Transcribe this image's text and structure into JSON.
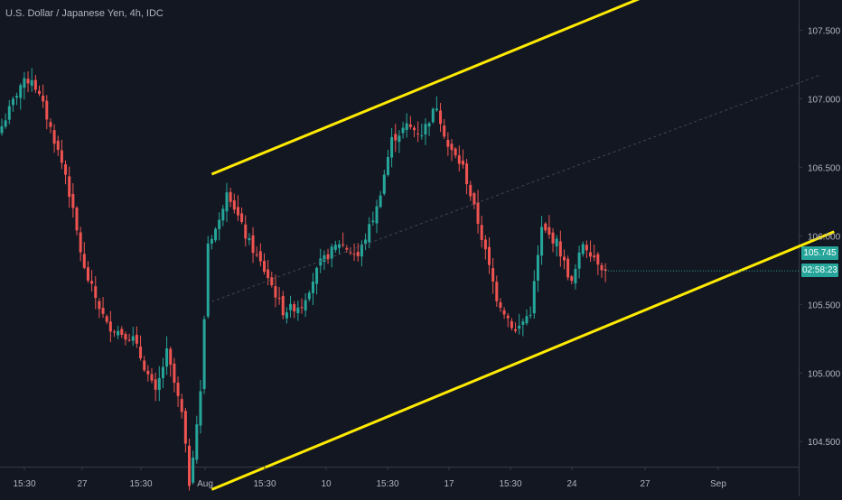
{
  "header": {
    "title": "U.S. Dollar / Japanese Yen, 4h, IDC"
  },
  "indicators": {
    "last_price": "105.745",
    "countdown": "02:58:23"
  },
  "colors": {
    "background": "#131722",
    "up": "#26a69a",
    "down": "#ef5350",
    "channel": "#ffeb00",
    "midline": "#434651",
    "axis_text": "#b2b5be"
  },
  "chart_data": {
    "type": "candlestick",
    "title": "U.S. Dollar / Japanese Yen, 4h, IDC",
    "xlabel": "",
    "ylabel": "",
    "ylim": [
      104.1,
      107.72
    ],
    "y_ticks": [
      "107.500",
      "107.000",
      "106.500",
      "106.000",
      "105.500",
      "105.000",
      "104.500"
    ],
    "x_ticks": [
      "15:30",
      "27",
      "15:30",
      "Aug",
      "15:30",
      "10",
      "15:30",
      "17",
      "15:30",
      "24",
      "27",
      "Sep"
    ],
    "grid": false,
    "last_price": 105.745,
    "anchors": [
      {
        "i": 0,
        "c": 106.8
      },
      {
        "i": 5,
        "c": 107.1
      },
      {
        "i": 8,
        "c": 107.15
      },
      {
        "i": 11,
        "c": 106.95
      },
      {
        "i": 17,
        "c": 106.45
      },
      {
        "i": 22,
        "c": 105.75
      },
      {
        "i": 28,
        "c": 105.35
      },
      {
        "i": 35,
        "c": 105.25
      },
      {
        "i": 41,
        "c": 104.85
      },
      {
        "i": 44,
        "c": 105.15
      },
      {
        "i": 48,
        "c": 104.7
      },
      {
        "i": 50,
        "c": 104.2
      },
      {
        "i": 53,
        "c": 104.85
      },
      {
        "i": 55,
        "c": 105.95
      },
      {
        "i": 58,
        "c": 106.1
      },
      {
        "i": 60,
        "c": 106.35
      },
      {
        "i": 65,
        "c": 106.0
      },
      {
        "i": 71,
        "c": 105.7
      },
      {
        "i": 75,
        "c": 105.45
      },
      {
        "i": 80,
        "c": 105.5
      },
      {
        "i": 85,
        "c": 105.8
      },
      {
        "i": 90,
        "c": 105.95
      },
      {
        "i": 95,
        "c": 105.85
      },
      {
        "i": 100,
        "c": 106.2
      },
      {
        "i": 104,
        "c": 106.7
      },
      {
        "i": 108,
        "c": 106.8
      },
      {
        "i": 112,
        "c": 106.75
      },
      {
        "i": 116,
        "c": 106.95
      },
      {
        "i": 119,
        "c": 106.65
      },
      {
        "i": 123,
        "c": 106.5
      },
      {
        "i": 127,
        "c": 106.1
      },
      {
        "i": 132,
        "c": 105.55
      },
      {
        "i": 137,
        "c": 105.3
      },
      {
        "i": 141,
        "c": 105.45
      },
      {
        "i": 144,
        "c": 106.05
      },
      {
        "i": 148,
        "c": 105.95
      },
      {
        "i": 152,
        "c": 105.65
      },
      {
        "i": 155,
        "c": 105.95
      },
      {
        "i": 158,
        "c": 105.85
      },
      {
        "i": 161,
        "c": 105.745
      }
    ],
    "channel": {
      "upper": [
        {
          "i": 56,
          "y": 106.45
        },
        {
          "i": 171,
          "y": 107.74
        }
      ],
      "lower": [
        {
          "i": 56,
          "y": 104.15
        },
        {
          "i": 222,
          "y": 106.03
        }
      ],
      "middle": [
        {
          "i": 56,
          "y": 105.52
        },
        {
          "i": 218,
          "y": 107.17
        }
      ]
    }
  }
}
